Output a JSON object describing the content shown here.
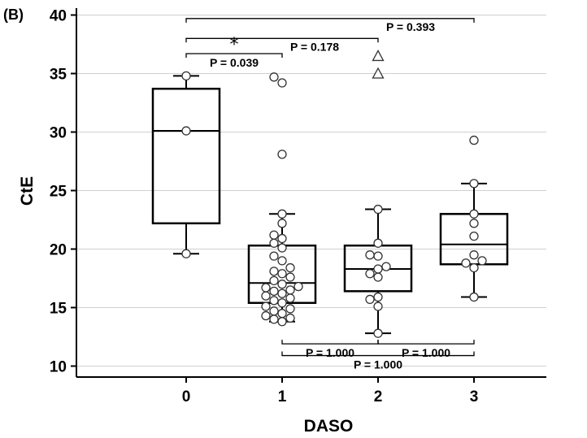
{
  "chart_data": {
    "type": "box",
    "panel_label": "(B)",
    "xlabel": "DASO",
    "ylabel": "CtE",
    "ylim": [
      9,
      41
    ],
    "yticks": [
      10,
      15,
      20,
      25,
      30,
      35,
      40
    ],
    "grid": "horizontal",
    "categories": [
      "0",
      "1",
      "2",
      "3"
    ],
    "boxes": [
      {
        "category": "0",
        "whisker_low": 19.6,
        "q1": 22.2,
        "median": 30.1,
        "q3": 33.7,
        "whisker_high": 34.8
      },
      {
        "category": "1",
        "whisker_low": 13.8,
        "q1": 15.4,
        "median": 17.1,
        "q3": 20.3,
        "whisker_high": 23.0
      },
      {
        "category": "2",
        "whisker_low": 12.8,
        "q1": 16.4,
        "median": 18.3,
        "q3": 20.3,
        "whisker_high": 23.4
      },
      {
        "category": "3",
        "whisker_low": 15.9,
        "q1": 18.7,
        "median": 20.4,
        "q3": 23.0,
        "whisker_high": 25.6
      }
    ],
    "points": [
      {
        "category": "0",
        "values": [
          34.8,
          30.1,
          19.6
        ]
      },
      {
        "category": "1",
        "values": [
          34.7,
          34.2,
          28.1,
          23.0,
          22.2,
          21.2,
          20.9,
          20.5,
          20.1,
          19.4,
          19.0,
          18.4,
          18.1,
          17.9,
          17.6,
          17.3,
          17.0,
          16.8,
          16.7,
          16.5,
          16.4,
          16.2,
          16.0,
          15.8,
          15.6,
          15.4,
          15.1,
          14.9,
          14.7,
          14.5,
          14.3,
          14.1,
          14.0,
          13.8
        ]
      },
      {
        "category": "2",
        "values": [
          23.4,
          20.5,
          19.5,
          19.4,
          18.5,
          18.3,
          17.9,
          17.6,
          15.9,
          15.7,
          15.1,
          12.8
        ]
      },
      {
        "category": "3",
        "values": [
          29.3,
          25.6,
          23.0,
          22.2,
          21.1,
          19.5,
          19.0,
          18.8,
          18.4,
          15.9
        ]
      }
    ],
    "outliers": [
      {
        "category": "2",
        "values": [
          36.5,
          35.0
        ],
        "marker": "triangle"
      }
    ],
    "comparisons": [
      {
        "from": "0",
        "to": "3",
        "label": "P = 0.393",
        "y": 39.7,
        "position": "above-right"
      },
      {
        "from": "0",
        "to": "2",
        "label": "P = 0.178",
        "y": 38.0,
        "position": "above-right"
      },
      {
        "from": "0",
        "to": "1",
        "label": "P = 0.039",
        "y": 36.7,
        "position": "below-center",
        "star": "*"
      },
      {
        "from": "1",
        "to": "2",
        "label": "P = 1.000",
        "y": 11.9,
        "position": "below-center"
      },
      {
        "from": "2",
        "to": "3",
        "label": "P = 1.000",
        "y": 11.9,
        "position": "below-center"
      },
      {
        "from": "1",
        "to": "3",
        "label": "P = 1.000",
        "y": 10.9,
        "position": "below-center"
      }
    ]
  }
}
